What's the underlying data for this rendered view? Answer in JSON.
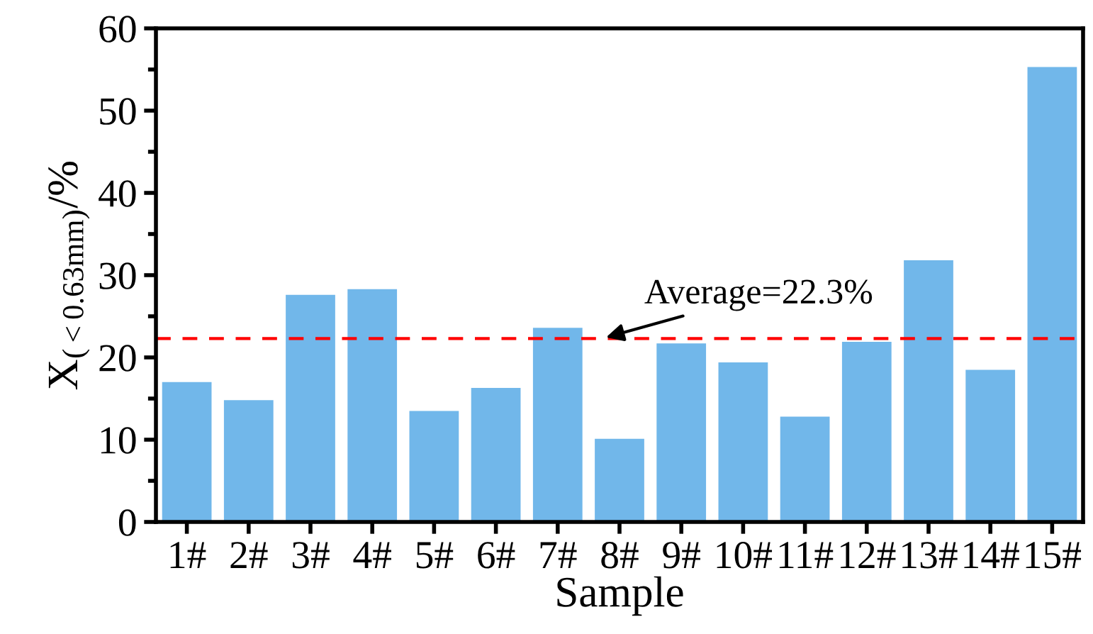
{
  "chart_data": {
    "type": "bar",
    "xlabel": "Sample",
    "ylabel": "X$_{(<0.63mm)}$/%",
    "categories": [
      "1#",
      "2#",
      "3#",
      "4#",
      "5#",
      "6#",
      "7#",
      "8#",
      "9#",
      "10#",
      "11#",
      "12#",
      "13#",
      "14#",
      "15#"
    ],
    "values": [
      17.0,
      14.8,
      27.6,
      28.3,
      13.5,
      16.3,
      23.6,
      10.1,
      21.7,
      19.4,
      12.8,
      21.9,
      31.8,
      18.5,
      55.3
    ],
    "color": "#71b7ea",
    "ylim": [
      0,
      60
    ],
    "yticks": [
      0,
      10,
      20,
      30,
      40,
      50,
      60
    ],
    "ref_lines": [
      {
        "axis": "y",
        "value": 22.3,
        "label": "Average=22.3%",
        "color": "#ff0000",
        "line_style": "dashed"
      }
    ],
    "grid": false,
    "legend": false
  }
}
